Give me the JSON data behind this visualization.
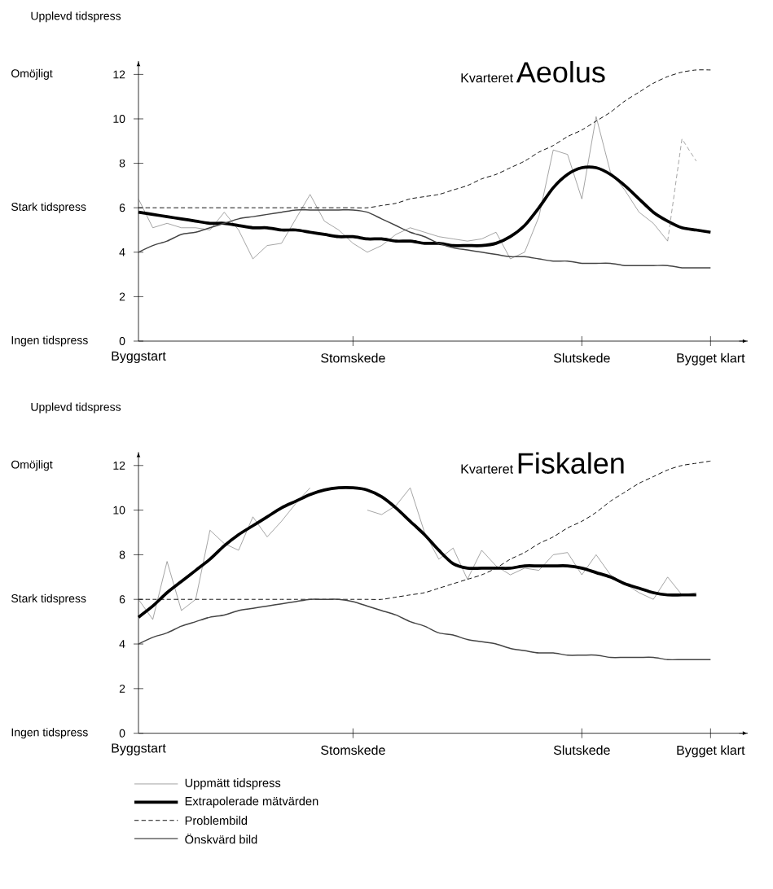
{
  "chart_data": [
    {
      "type": "line",
      "title": "Kvarteret",
      "subtitle": "Aeolus",
      "ylabel": "Upplevd tidspress",
      "annotations": [
        "Omöjligt",
        "Stark tidspress",
        "Ingen tidspress"
      ],
      "categories": [
        "Byggstart",
        null,
        null,
        null,
        null,
        null,
        null,
        null,
        null,
        null,
        null,
        null,
        null,
        null,
        null,
        "Stomskede",
        null,
        null,
        null,
        null,
        null,
        null,
        null,
        null,
        null,
        null,
        null,
        null,
        null,
        null,
        null,
        "Slutskede",
        null,
        null,
        null,
        null,
        null,
        null,
        null,
        null,
        "Bygget klart"
      ],
      "ylim": [
        0,
        12.6
      ],
      "yticks": [
        0,
        2,
        4,
        6,
        8,
        10,
        12
      ],
      "series": [
        {
          "color": "#777777",
          "values": [
            6.4,
            5.1,
            5.3,
            5.1,
            5.1,
            5.0,
            5.8,
            5.0,
            3.7,
            4.3,
            4.4,
            5.5,
            6.6,
            5.4,
            5.0,
            4.4,
            4.0,
            4.3,
            4.8,
            5.1,
            4.9,
            4.7,
            4.6,
            4.5,
            4.6,
            4.9,
            3.7,
            4.0,
            5.6,
            8.6,
            8.4,
            6.4,
            10.1,
            7.6,
            6.8,
            5.8,
            5.3,
            4.5,
            null,
            null,
            null
          ]
        },
        {
          "color": "#000000",
          "values": [
            5.8,
            5.7,
            5.6,
            5.5,
            5.4,
            5.3,
            5.3,
            5.2,
            5.1,
            5.1,
            5.0,
            5.0,
            4.9,
            4.8,
            4.7,
            4.7,
            4.6,
            4.6,
            4.5,
            4.5,
            4.4,
            4.4,
            4.3,
            4.3,
            4.3,
            4.4,
            4.7,
            5.2,
            6.0,
            6.9,
            7.5,
            7.8,
            7.8,
            7.5,
            7.0,
            6.4,
            5.8,
            5.4,
            5.1,
            5.0,
            4.9
          ]
        },
        {
          "color": "#000000",
          "line_style": "dashed",
          "values": [
            6.0,
            6.0,
            6.0,
            6.0,
            6.0,
            6.0,
            6.0,
            6.0,
            6.0,
            6.0,
            6.0,
            6.0,
            6.0,
            6.0,
            6.0,
            6.0,
            6.0,
            6.1,
            6.2,
            6.4,
            6.5,
            6.6,
            6.8,
            7.0,
            7.3,
            7.5,
            7.8,
            8.1,
            8.5,
            8.8,
            9.2,
            9.5,
            9.9,
            10.3,
            10.8,
            11.2,
            11.6,
            11.9,
            12.1,
            12.2,
            12.2
          ]
        },
        {
          "color": "#444444",
          "values": [
            4.0,
            4.3,
            4.5,
            4.8,
            4.9,
            5.1,
            5.3,
            5.5,
            5.6,
            5.7,
            5.8,
            5.9,
            5.9,
            5.9,
            5.9,
            5.9,
            5.8,
            5.5,
            5.2,
            4.9,
            4.7,
            4.4,
            4.2,
            4.1,
            4.0,
            3.9,
            3.8,
            3.8,
            3.7,
            3.6,
            3.6,
            3.5,
            3.5,
            3.5,
            3.4,
            3.4,
            3.4,
            3.4,
            3.3,
            3.3,
            3.3
          ]
        },
        {
          "color": "#777777",
          "line_style": "dashed",
          "values": [
            null,
            null,
            null,
            null,
            null,
            null,
            null,
            null,
            null,
            null,
            null,
            null,
            null,
            null,
            null,
            null,
            null,
            null,
            null,
            null,
            null,
            null,
            null,
            null,
            null,
            null,
            null,
            null,
            null,
            null,
            null,
            null,
            null,
            null,
            null,
            null,
            null,
            4.5,
            9.1,
            8.1,
            null
          ]
        }
      ]
    },
    {
      "type": "line",
      "title": "Kvarteret",
      "subtitle": "Fiskalen",
      "ylabel": "Upplevd tidspress",
      "annotations": [
        "Omöjligt",
        "Stark tidspress",
        "Ingen tidspress"
      ],
      "categories": [
        "Byggstart",
        null,
        null,
        null,
        null,
        null,
        null,
        null,
        null,
        null,
        null,
        null,
        null,
        null,
        null,
        "Stomskede",
        null,
        null,
        null,
        null,
        null,
        null,
        null,
        null,
        null,
        null,
        null,
        null,
        null,
        null,
        null,
        "Slutskede",
        null,
        null,
        null,
        null,
        null,
        null,
        null,
        null,
        "Bygget klart"
      ],
      "ylim": [
        0,
        12.6
      ],
      "yticks": [
        0,
        2,
        4,
        6,
        8,
        10,
        12
      ],
      "legend": "bottom",
      "series": [
        {
          "name": "Uppmätt tidspress",
          "color": "#777777",
          "values": [
            6.0,
            5.1,
            7.7,
            5.5,
            6.0,
            9.1,
            8.5,
            8.2,
            9.7,
            8.8,
            9.5,
            10.3,
            11.0,
            null,
            null,
            null,
            10.0,
            9.8,
            10.2,
            11.0,
            9.0,
            7.8,
            8.3,
            6.9,
            8.2,
            7.5,
            7.1,
            7.4,
            7.3,
            8.0,
            8.1,
            7.1,
            8.0,
            7.1,
            6.7,
            6.3,
            6.0,
            7.0,
            6.2,
            6.3,
            null
          ]
        },
        {
          "name": "Extrapolerade mätvärden",
          "color": "#000000",
          "values": [
            5.2,
            5.7,
            6.3,
            6.8,
            7.3,
            7.8,
            8.4,
            8.9,
            9.3,
            9.7,
            10.1,
            10.4,
            10.7,
            10.9,
            11.0,
            11.0,
            10.9,
            10.6,
            10.1,
            9.5,
            8.9,
            8.2,
            7.6,
            7.4,
            7.4,
            7.4,
            7.4,
            7.5,
            7.5,
            7.5,
            7.5,
            7.4,
            7.2,
            7.0,
            6.7,
            6.5,
            6.3,
            6.2,
            6.2,
            6.2,
            null
          ]
        },
        {
          "name": "Problembild",
          "color": "#000000",
          "line_style": "dashed",
          "values": [
            6.0,
            6.0,
            6.0,
            6.0,
            6.0,
            6.0,
            6.0,
            6.0,
            6.0,
            6.0,
            6.0,
            6.0,
            6.0,
            6.0,
            6.0,
            6.0,
            6.0,
            6.0,
            6.1,
            6.2,
            6.3,
            6.5,
            6.7,
            6.9,
            7.1,
            7.4,
            7.8,
            8.1,
            8.5,
            8.8,
            9.2,
            9.5,
            9.9,
            10.4,
            10.8,
            11.2,
            11.5,
            11.8,
            12.0,
            12.1,
            12.2
          ]
        },
        {
          "name": "Önskvärd bild",
          "color": "#444444",
          "values": [
            4.0,
            4.3,
            4.5,
            4.8,
            5.0,
            5.2,
            5.3,
            5.5,
            5.6,
            5.7,
            5.8,
            5.9,
            6.0,
            6.0,
            6.0,
            5.9,
            5.7,
            5.5,
            5.3,
            5.0,
            4.8,
            4.5,
            4.4,
            4.2,
            4.1,
            4.0,
            3.8,
            3.7,
            3.6,
            3.6,
            3.5,
            3.5,
            3.5,
            3.4,
            3.4,
            3.4,
            3.4,
            3.3,
            3.3,
            3.3,
            3.3
          ]
        }
      ]
    }
  ]
}
